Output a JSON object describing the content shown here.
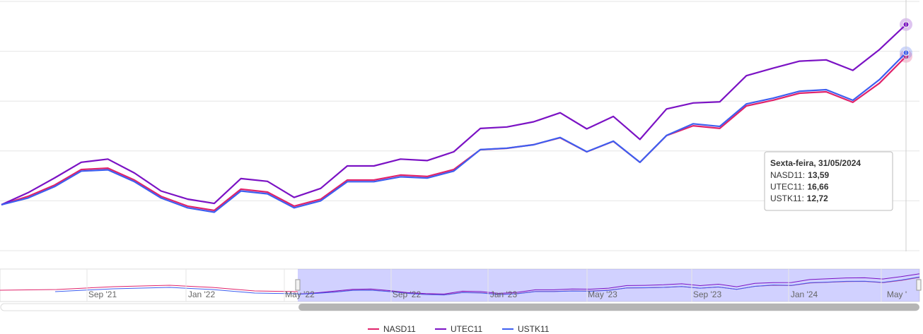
{
  "chart_data": {
    "type": "line",
    "compare": "percent",
    "ylim": [
      -26,
      115
    ],
    "grid": true,
    "series": [
      {
        "name": "NASD11",
        "color": "#e0226a",
        "values": [
          7.39,
          7.74,
          8.21,
          8.86,
          8.92,
          8.42,
          7.74,
          7.33,
          7.15,
          8.04,
          7.92,
          7.33,
          7.62,
          8.42,
          8.42,
          8.63,
          8.57,
          8.86,
          9.69,
          9.75,
          9.9,
          10.19,
          9.6,
          10.04,
          9.16,
          10.28,
          10.69,
          10.58,
          11.52,
          11.76,
          12.05,
          12.11,
          11.67,
          12.47,
          13.59
        ]
      },
      {
        "name": "UTEC11",
        "color": "#7b12c4",
        "values": [
          8.25,
          8.81,
          9.5,
          10.23,
          10.38,
          9.73,
          8.89,
          8.51,
          8.31,
          9.47,
          9.34,
          8.59,
          9.01,
          10.06,
          10.06,
          10.38,
          10.31,
          10.72,
          11.81,
          11.88,
          12.12,
          12.54,
          11.79,
          12.37,
          11.3,
          12.72,
          13.0,
          13.05,
          14.27,
          14.62,
          14.95,
          15.01,
          14.52,
          15.49,
          16.66
        ]
      },
      {
        "name": "USTK11",
        "color": "#3d5ef0",
        "values": [
          6.84,
          7.1,
          7.54,
          8.14,
          8.19,
          7.73,
          7.1,
          6.72,
          6.55,
          7.37,
          7.26,
          6.72,
          6.99,
          7.73,
          7.73,
          7.92,
          7.87,
          8.14,
          8.97,
          9.03,
          9.16,
          9.44,
          8.89,
          9.3,
          8.48,
          9.52,
          9.97,
          9.87,
          10.74,
          10.96,
          11.23,
          11.29,
          10.88,
          11.68,
          12.72
        ]
      }
    ],
    "tooltip": {
      "title": "Sexta-feira, 31/05/2024",
      "items": [
        {
          "name": "NASD11:",
          "value": "13,59"
        },
        {
          "name": "UTEC11:",
          "value": "16,66"
        },
        {
          "name": "USTK11:",
          "value": "12,72"
        }
      ]
    },
    "navigator": {
      "labels": [
        "Sep '21",
        "Jan '22",
        "May '22",
        "Sep '22",
        "Jan '23",
        "May '23",
        "Sep '23",
        "Jan '24",
        "May '"
      ]
    }
  }
}
